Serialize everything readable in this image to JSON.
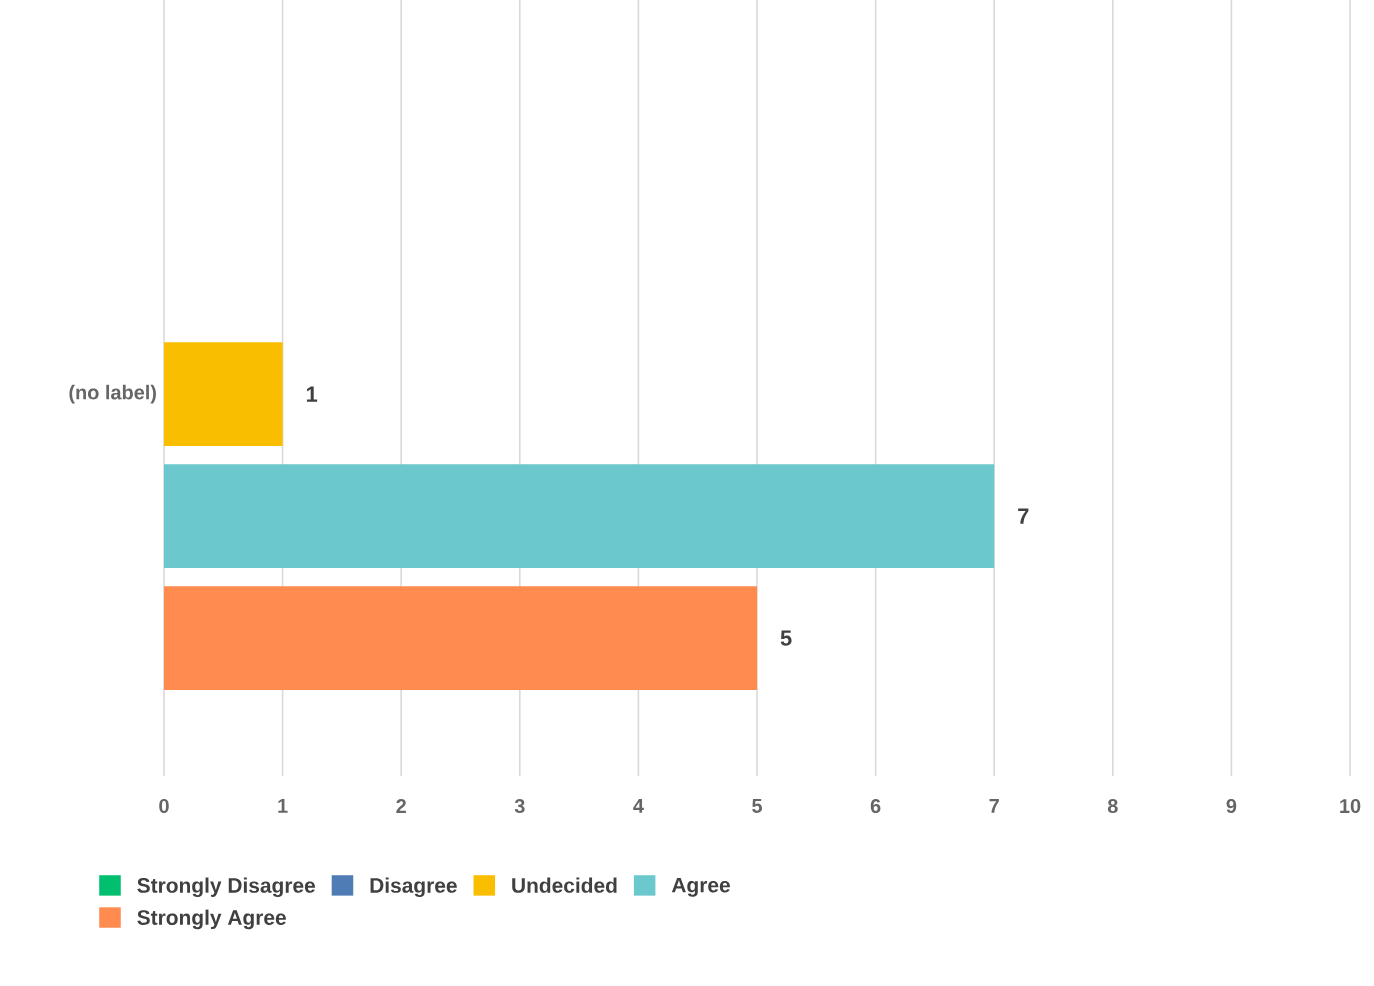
{
  "chart_data": {
    "type": "bar",
    "orientation": "horizontal",
    "categories": [
      "(no label)"
    ],
    "series": [
      {
        "name": "Strongly Disagree",
        "color": "#00bf6f",
        "values": [
          0
        ],
        "value_labels": [
          null
        ]
      },
      {
        "name": "Disagree",
        "color": "#507cb6",
        "values": [
          0
        ],
        "value_labels": [
          null
        ]
      },
      {
        "name": "Undecided",
        "color": "#f9be00",
        "values": [
          1
        ],
        "value_labels": [
          "1"
        ]
      },
      {
        "name": "Agree",
        "color": "#6bc8cd",
        "values": [
          7
        ],
        "value_labels": [
          "7"
        ]
      },
      {
        "name": "Strongly Agree",
        "color": "#ff8b4f",
        "values": [
          5
        ],
        "value_labels": [
          "5"
        ]
      }
    ],
    "xlim": [
      0,
      10
    ],
    "xticks": [
      0,
      1,
      2,
      3,
      4,
      5,
      6,
      7,
      8,
      9,
      10
    ],
    "grid": "x",
    "legend": "bottom"
  }
}
